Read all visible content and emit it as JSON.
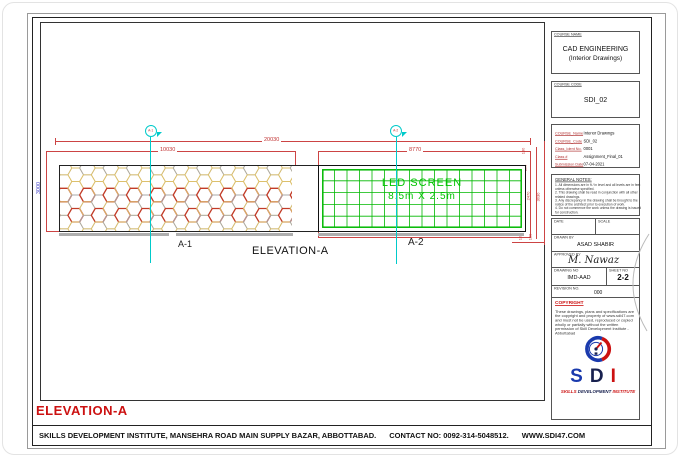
{
  "page": {
    "elevation_title": "ELEVATION-A",
    "footer": {
      "institute": "SKILLS DEVELOPMENT INSTITUTE, MANSEHRA ROAD MAIN SUPPLY BAZAR, ABBOTTABAD.",
      "contact": "CONTACT NO: 0092-314-5048512.",
      "website": "WWW.SDI47.COM"
    }
  },
  "drawing": {
    "label": "ELEVATION-A",
    "a1_label": "A-1",
    "a2_label": "A-2",
    "marker_a1": "A-1",
    "marker_a2": "A-2",
    "led": {
      "line1": "LED SCREEN",
      "line2": "8.5m X 2.5m"
    },
    "dims": {
      "overall": "20030",
      "a1_width": "10030",
      "a2_width": "8770",
      "height": "3000",
      "right": [
        "130",
        "150",
        "500",
        "600",
        "2470",
        "3030",
        "45",
        "100",
        "150"
      ]
    }
  },
  "title_block": {
    "course_name": {
      "label": "COURSE NAME",
      "line1": "CAD ENGINEERING",
      "line2": "(Interior Drawings)"
    },
    "course_code": {
      "label": "COURSE CODE",
      "value": "SDI_02"
    },
    "meta": {
      "rows": [
        {
          "label": "COURSE_Name",
          "value": "Interior Drawings"
        },
        {
          "label": "COURSE_Code",
          "value": "SDI_02"
        },
        {
          "label": "Class_Ident No.",
          "value": "0001"
        },
        {
          "label": "Class #",
          "value": "Assignment_Final_01"
        },
        {
          "label": "Submission Date",
          "value": "07-04-2021"
        }
      ]
    },
    "general_notes": {
      "label": "GENERAL NOTES:",
      "notes": [
        "1. All dimensions are in ft / in level and all levels are in feet unless otherwise specified.",
        "2. This drawing shall be read in conjunction with all other related drawings.",
        "3. Any discrepancy in the drawing shall be brought to the notice of the architect prior to execution of work.",
        "4. Do not commence the work unless the drawing is issued for construction."
      ]
    },
    "date_label": "DATE",
    "scale_label": "SCALE",
    "drawn_by": {
      "label": "DRAWN BY",
      "value": "ASAD SHABIR"
    },
    "approved_by": {
      "label": "APPROVED BY",
      "signature": "M. Nawaz"
    },
    "drawing_no": {
      "label": "DRAWING NO",
      "value": "IMD-AAD"
    },
    "sheet_no": {
      "label": "SHEET NO",
      "value": "2-2"
    },
    "revision_no": {
      "label": "REVISION NO.",
      "value": "000"
    },
    "copyright": {
      "label": "COPYRIGHT",
      "text": "These drawings, plans and specifications are the copyright and property of www.sdi47.com and must not be used, reproduced or copied wholly or partially without the written permission of Skill Development Institute - Abbottabad"
    },
    "logo": {
      "letter_s": "S",
      "letter_d": "D",
      "letter_i": "I",
      "tag_skills": "SKILLS",
      "tag_dev": "DEVELOPMENT",
      "tag_inst": "INSTITUTE"
    }
  },
  "colors": {
    "dim_red": "#cc4444",
    "section_cyan": "#00caca",
    "led_green": "#00b800",
    "accent_red": "#cc1111",
    "logo_blue": "#1a3aad",
    "logo_navy": "#18214f",
    "hex_tan": "#dcc06c",
    "hex_gray": "#a8a8a8",
    "hex_red": "#c23b28"
  }
}
